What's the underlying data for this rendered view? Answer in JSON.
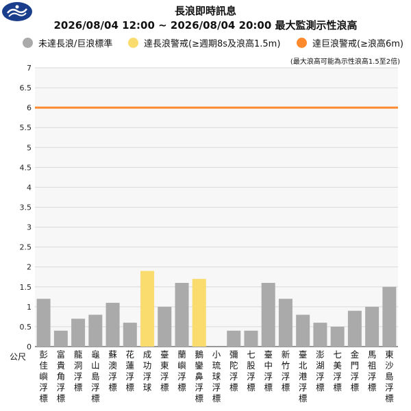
{
  "header": {
    "title": "長浪即時訊息",
    "subtitle": "2026/08/04 12:00 ~ 2026/08/04 20:00 最大監測示性浪高"
  },
  "legend": [
    {
      "label": "未達長浪/巨浪標準",
      "color": "#aaaaaa"
    },
    {
      "label": "達長浪警戒(≥週期8s及浪高1.5m)",
      "color": "#fadc6e"
    },
    {
      "label": "達巨浪警戒(≥浪高6m)",
      "color": "#ff8a2e"
    }
  ],
  "note": "(最大浪高可能為示性浪高1.5至2倍)",
  "unit_label": "公尺",
  "colors": {
    "normal": "#aaaaaa",
    "swell": "#fadc6e",
    "huge_wave_line": "#ff8a2e",
    "grid": "#d8d8d8",
    "plot_bg": "#f7f7f7",
    "logo": "#1a3e8c"
  },
  "chart_data": {
    "type": "bar",
    "title": "長浪即時訊息",
    "subtitle": "2026/08/04 12:00 ~ 2026/08/04 20:00 最大監測示性浪高",
    "ylabel": "公尺",
    "ylim": [
      0,
      7
    ],
    "yticks": [
      0,
      0.5,
      1,
      1.5,
      2,
      2.5,
      3,
      3.5,
      4,
      4.5,
      5,
      5.5,
      6,
      6.5,
      7
    ],
    "grid": true,
    "legend_position": "top",
    "categories": [
      "彭佳嶼浮標",
      "富貴角浮標",
      "龍洞浮標",
      "龜山島浮標",
      "蘇澳浮標",
      "花蓮浮標",
      "成功浮球",
      "臺東浮標",
      "蘭嶼浮標",
      "鵝鑾鼻浮標",
      "小琉球浮標",
      "彌陀浮標",
      "七股浮標",
      "臺中浮標",
      "新竹浮標",
      "臺北港浮標",
      "澎湖浮標",
      "七美浮標",
      "金門浮標",
      "馬祖浮標",
      "東沙島浮標"
    ],
    "values": [
      1.2,
      0.4,
      0.7,
      0.8,
      1.1,
      0.6,
      1.9,
      1.0,
      1.6,
      1.7,
      null,
      0.4,
      0.4,
      1.6,
      1.2,
      0.8,
      0.6,
      0.5,
      0.9,
      1.0,
      1.5
    ],
    "bar_status": [
      "normal",
      "normal",
      "normal",
      "normal",
      "normal",
      "normal",
      "swell",
      "normal",
      "normal",
      "swell",
      "normal",
      "normal",
      "normal",
      "normal",
      "normal",
      "normal",
      "normal",
      "normal",
      "normal",
      "normal",
      "normal"
    ],
    "threshold_line": {
      "y": 6,
      "color": "#ff8a2e"
    }
  }
}
